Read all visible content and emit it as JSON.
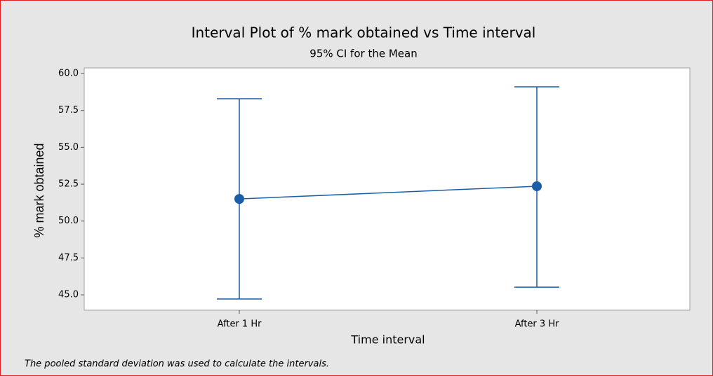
{
  "chart_data": {
    "type": "interval",
    "title": "Interval Plot of % mark obtained vs Time interval",
    "subtitle": "95% CI for the Mean",
    "x_label": "Time interval",
    "y_label": "% mark obtained",
    "footnote": "The pooled standard deviation was used to calculate the intervals.",
    "categories": [
      "After 1 Hr",
      "After 3 Hr"
    ],
    "values": [
      51.5,
      52.36
    ],
    "lower": [
      44.72,
      45.52
    ],
    "upper": [
      58.29,
      59.1
    ],
    "color": "#1a5ea8",
    "ylim": [
      43.96,
      60.38
    ],
    "yticks": [
      {
        "value": 45,
        "label": "45.0"
      },
      47.5,
      {
        "value": 50,
        "label": "50.0"
      },
      52.5,
      {
        "value": 55,
        "label": "55.0"
      },
      57.5,
      {
        "value": 60,
        "label": "60.0"
      }
    ]
  }
}
